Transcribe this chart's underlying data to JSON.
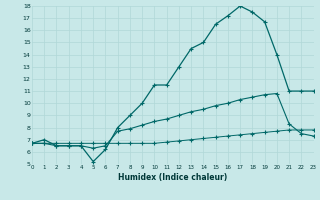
{
  "bg_color": "#c8e8e8",
  "grid_color": "#b0d8d8",
  "line_color": "#006868",
  "xlabel": "Humidex (Indice chaleur)",
  "xlim": [
    0,
    23
  ],
  "ylim": [
    5,
    18
  ],
  "xticks": [
    0,
    1,
    2,
    3,
    4,
    5,
    6,
    7,
    8,
    9,
    10,
    11,
    12,
    13,
    14,
    15,
    16,
    17,
    18,
    19,
    20,
    21,
    22,
    23
  ],
  "yticks": [
    5,
    6,
    7,
    8,
    9,
    10,
    11,
    12,
    13,
    14,
    15,
    16,
    17,
    18
  ],
  "line1_x": [
    0,
    1,
    2,
    3,
    4,
    5,
    6,
    7,
    8,
    9,
    10,
    11,
    12,
    13,
    14,
    15,
    16,
    17,
    18,
    19,
    20,
    21,
    22,
    23
  ],
  "line1_y": [
    6.7,
    7.0,
    6.5,
    6.5,
    6.5,
    5.2,
    6.2,
    8.0,
    9.0,
    10.0,
    11.5,
    11.5,
    13.0,
    14.5,
    15.0,
    16.5,
    17.2,
    18.0,
    17.5,
    16.7,
    14.0,
    11.0,
    11.0,
    11.0
  ],
  "line2_x": [
    0,
    1,
    2,
    3,
    4,
    5,
    6,
    7,
    8,
    9,
    10,
    11,
    12,
    13,
    14,
    15,
    16,
    17,
    18,
    19,
    20,
    21,
    22,
    23
  ],
  "line2_y": [
    6.7,
    6.7,
    6.5,
    6.5,
    6.5,
    6.3,
    6.5,
    7.7,
    7.9,
    8.2,
    8.5,
    8.7,
    9.0,
    9.3,
    9.5,
    9.8,
    10.0,
    10.3,
    10.5,
    10.7,
    10.8,
    8.3,
    7.5,
    7.3
  ],
  "line3_x": [
    0,
    1,
    2,
    3,
    4,
    5,
    6,
    7,
    8,
    9,
    10,
    11,
    12,
    13,
    14,
    15,
    16,
    17,
    18,
    19,
    20,
    21,
    22,
    23
  ],
  "line3_y": [
    6.7,
    6.7,
    6.7,
    6.7,
    6.7,
    6.7,
    6.7,
    6.7,
    6.7,
    6.7,
    6.7,
    6.8,
    6.9,
    7.0,
    7.1,
    7.2,
    7.3,
    7.4,
    7.5,
    7.6,
    7.7,
    7.8,
    7.8,
    7.8
  ]
}
